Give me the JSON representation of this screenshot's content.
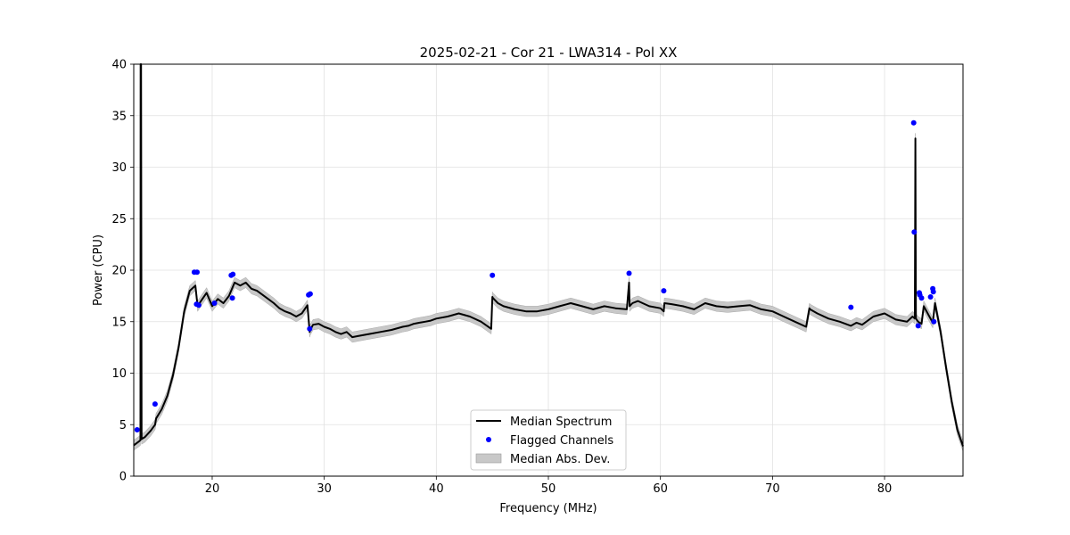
{
  "chart_data": {
    "type": "line",
    "title": "2025-02-21 - Cor 21 - LWA314 - Pol XX",
    "xlabel": "Frequency (MHz)",
    "ylabel": "Power (CPU)",
    "xlim": [
      13.0,
      87.0
    ],
    "ylim": [
      0,
      40
    ],
    "xticks": [
      20,
      30,
      40,
      50,
      60,
      70,
      80
    ],
    "yticks": [
      0,
      5,
      10,
      15,
      20,
      25,
      30,
      35,
      40
    ],
    "grid": true,
    "legend_position": "bottom-center",
    "colors": {
      "median": "#000000",
      "flagged": "#0000ff",
      "mad": "#c8c8c8"
    },
    "series": [
      {
        "name": "Median Spectrum",
        "kind": "line",
        "x": [
          13.0,
          13.5,
          13.6,
          13.61,
          13.65,
          13.7,
          14.0,
          14.5,
          14.9,
          15.0,
          15.5,
          16.0,
          16.5,
          17.0,
          17.5,
          18.0,
          18.5,
          18.7,
          19.0,
          19.5,
          20.0,
          20.5,
          21.0,
          21.5,
          22.0,
          22.5,
          23.0,
          23.5,
          24.0,
          24.5,
          25.0,
          25.5,
          26.0,
          26.5,
          27.0,
          27.5,
          28.0,
          28.5,
          28.7,
          28.75,
          29.0,
          29.5,
          30.0,
          30.5,
          31.0,
          31.5,
          32.0,
          32.5,
          33.0,
          34.0,
          35.0,
          36.0,
          37.0,
          37.5,
          38.0,
          38.5,
          39.0,
          39.5,
          40.0,
          41.0,
          42.0,
          43.0,
          44.0,
          44.9,
          45.0,
          45.05,
          45.5,
          46.0,
          47.0,
          48.0,
          49.0,
          50.0,
          51.0,
          52.0,
          53.0,
          54.0,
          55.0,
          56.0,
          57.0,
          57.2,
          57.25,
          57.5,
          58.0,
          59.0,
          60.0,
          60.3,
          60.35,
          61.0,
          62.0,
          63.0,
          64.0,
          65.0,
          66.0,
          67.0,
          68.0,
          69.0,
          70.0,
          71.0,
          72.0,
          73.0,
          73.3,
          73.35,
          74.0,
          75.0,
          76.0,
          77.0,
          77.5,
          78.0,
          79.0,
          80.0,
          81.0,
          82.0,
          82.5,
          82.7,
          82.75,
          82.8,
          83.0,
          83.3,
          83.5,
          84.0,
          84.3,
          84.5,
          85.0,
          85.5,
          86.0,
          86.5,
          87.0
        ],
        "y": [
          3.0,
          3.4,
          3.5,
          40.0,
          40.0,
          3.6,
          3.8,
          4.4,
          5.0,
          5.6,
          6.5,
          7.8,
          9.8,
          12.5,
          16.0,
          18.0,
          18.5,
          16.5,
          17.0,
          17.8,
          16.5,
          17.2,
          16.8,
          17.5,
          18.8,
          18.5,
          18.8,
          18.2,
          18.0,
          17.6,
          17.2,
          16.8,
          16.3,
          16.0,
          15.8,
          15.5,
          15.8,
          16.6,
          14.0,
          14.2,
          14.7,
          14.8,
          14.5,
          14.3,
          14.0,
          13.8,
          14.0,
          13.5,
          13.6,
          13.8,
          14.0,
          14.2,
          14.5,
          14.6,
          14.8,
          14.9,
          15.0,
          15.1,
          15.3,
          15.5,
          15.8,
          15.5,
          15.0,
          14.3,
          17.4,
          17.3,
          16.8,
          16.5,
          16.2,
          16.0,
          16.0,
          16.2,
          16.5,
          16.8,
          16.5,
          16.2,
          16.5,
          16.3,
          16.2,
          18.8,
          16.5,
          16.8,
          17.0,
          16.5,
          16.3,
          16.0,
          16.8,
          16.7,
          16.5,
          16.2,
          16.8,
          16.5,
          16.4,
          16.5,
          16.6,
          16.2,
          16.0,
          15.5,
          15.0,
          14.5,
          16.3,
          16.2,
          15.8,
          15.3,
          15.0,
          14.6,
          14.9,
          14.7,
          15.5,
          15.8,
          15.2,
          15.0,
          15.5,
          15.3,
          32.8,
          15.3,
          15.0,
          14.8,
          16.5,
          15.5,
          14.9,
          16.8,
          14.0,
          10.5,
          7.2,
          4.5,
          2.9
        ]
      },
      {
        "name": "Flagged Channels",
        "kind": "scatter",
        "x": [
          13.3,
          14.9,
          18.4,
          18.6,
          18.65,
          18.8,
          20.2,
          21.7,
          21.8,
          21.85,
          28.6,
          28.7,
          28.75,
          45.0,
          57.2,
          60.3,
          77.0,
          82.6,
          82.65,
          83.0,
          83.1,
          83.15,
          83.3,
          84.1,
          84.3,
          84.35,
          84.4
        ],
        "y": [
          4.5,
          7.0,
          19.8,
          16.7,
          19.8,
          16.6,
          16.8,
          19.5,
          17.3,
          19.6,
          17.6,
          14.3,
          17.7,
          19.5,
          19.7,
          18.0,
          16.4,
          34.3,
          23.7,
          14.6,
          17.8,
          17.6,
          17.3,
          17.4,
          18.2,
          17.9,
          15.0
        ]
      },
      {
        "name": "Median Abs. Dev.",
        "kind": "band",
        "halfwidth": 0.5
      }
    ]
  }
}
